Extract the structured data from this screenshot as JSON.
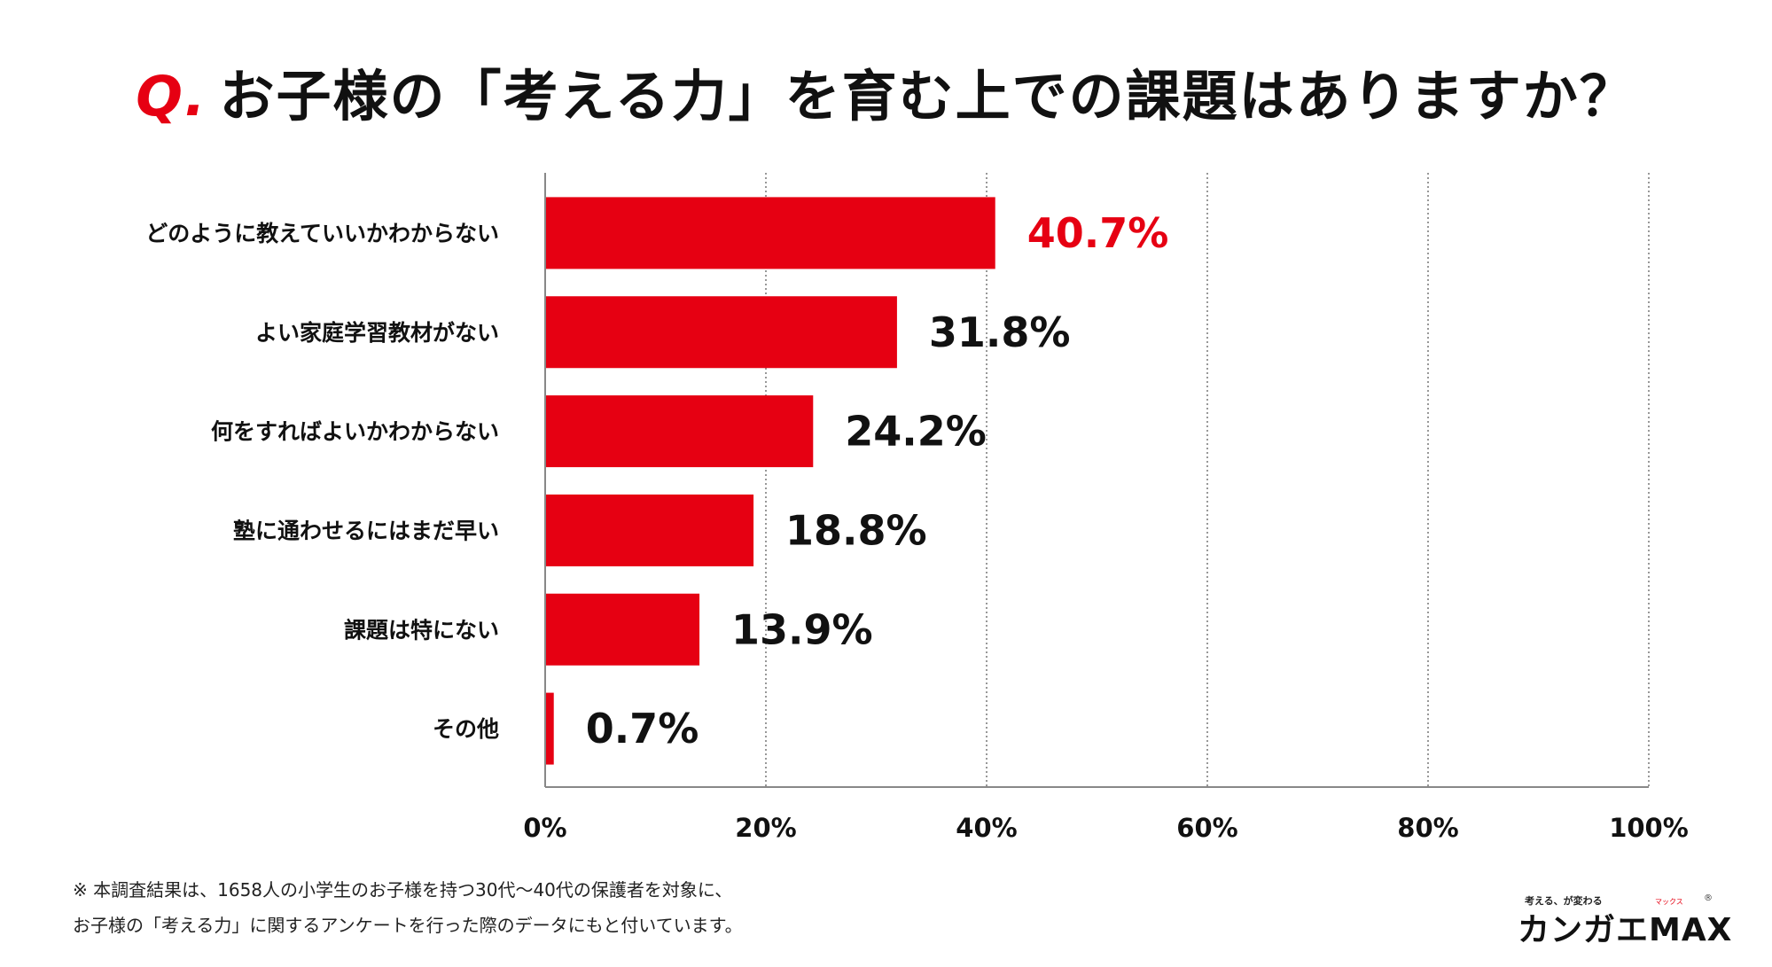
{
  "title": {
    "q": "Q.",
    "text": "お子様の「考える力」を育む上での課題はありますか？"
  },
  "chart_data": {
    "type": "bar",
    "orientation": "horizontal",
    "categories": [
      "どのように教えていいかわからない",
      "よい家庭学習教材がない",
      "何をすればよいかわからない",
      "塾に通わせるにはまだ早い",
      "課題は特にない",
      "その他"
    ],
    "values": [
      40.7,
      31.8,
      24.2,
      18.8,
      13.9,
      0.7
    ],
    "value_labels": [
      "40.7%",
      "31.8%",
      "24.2%",
      "18.8%",
      "13.9%",
      "0.7%"
    ],
    "xlim": [
      0,
      100
    ],
    "xticks": [
      0,
      20,
      40,
      60,
      80,
      100
    ],
    "xtick_labels": [
      "0%",
      "20%",
      "40%",
      "60%",
      "80%",
      "100%"
    ],
    "grid": "vertical dotted",
    "bar_color": "#e60012",
    "highlight_label_color": "#e60012",
    "label_color": "#111111"
  },
  "footnote": {
    "line1": "※ 本調査結果は、1658人の小学生のお子様を持つ30代～40代の保護者を対象に、",
    "line2": "お子様の「考える力」に関するアンケートを行った際のデータにもと付いています。"
  },
  "logo": {
    "tagline": "考える、が変わる",
    "ruby": "マックス",
    "name": "カンガエMAX",
    "reg": "®"
  }
}
